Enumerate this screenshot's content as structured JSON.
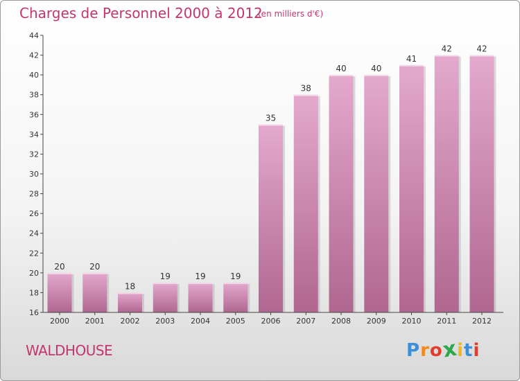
{
  "header": {
    "title": "Charges de Personnel 2000 à 2012",
    "subtitle": "(en milliers d'€)"
  },
  "footer": {
    "location": "WALDHOUSE",
    "brand": {
      "letters": [
        "P",
        "r",
        "o",
        "x",
        "i",
        "t",
        "i"
      ],
      "colors": [
        "#3b8fd8",
        "#f08a1c",
        "#e43b2a",
        "#2fa84b",
        "#f0b81c",
        "#3b8fd8",
        "#e43b2a"
      ]
    }
  },
  "chart_data": {
    "type": "bar",
    "title": "Charges de Personnel 2000 à 2012",
    "subtitle": "(en milliers d'€)",
    "xlabel": "",
    "ylabel": "",
    "categories": [
      "2000",
      "2001",
      "2002",
      "2003",
      "2004",
      "2005",
      "2006",
      "2007",
      "2008",
      "2009",
      "2010",
      "2011",
      "2012"
    ],
    "values": [
      20,
      20,
      18,
      19,
      19,
      19,
      35,
      38,
      40,
      40,
      41,
      42,
      42
    ],
    "ylim": [
      16,
      44
    ],
    "yticks": [
      16,
      18,
      20,
      22,
      24,
      26,
      28,
      30,
      32,
      34,
      36,
      38,
      40,
      42,
      44
    ],
    "grid": false,
    "legend": "none",
    "colors": {
      "bar_top": "#e4a9cd",
      "bar_bottom": "#b0678f",
      "axis": "#444444",
      "text": "#333333",
      "accent": "#c2366e"
    }
  }
}
